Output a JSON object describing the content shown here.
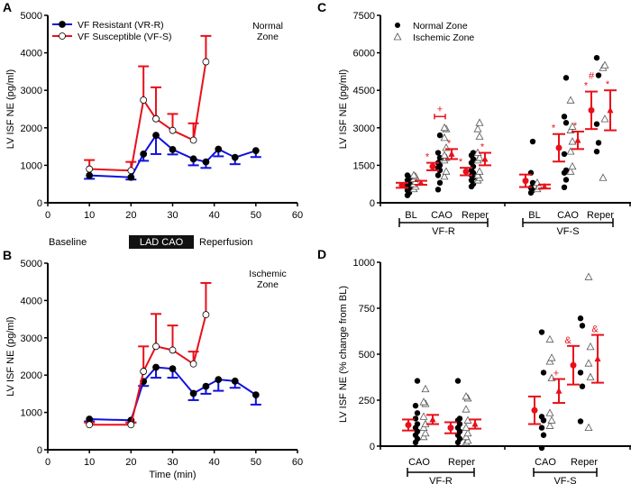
{
  "colors": {
    "resistant": "#1010e0",
    "susceptible": "#e8101a",
    "mean": "#e8101a",
    "phase_bar": "#111111"
  },
  "chart_data": [
    {
      "panel": "A",
      "type": "line",
      "xlabel": "",
      "ylabel": "LV ISF NE (pg/ml)",
      "xlim": [
        0,
        60
      ],
      "ylim": [
        0,
        5000
      ],
      "xticks": [
        "0",
        "10",
        "20",
        "30",
        "40",
        "50",
        "60"
      ],
      "yticks": [
        "0",
        "1000",
        "2000",
        "3000",
        "4000",
        "5000"
      ],
      "zone_label": [
        "Normal",
        "Zone"
      ],
      "legend": {
        "placement": "top-left",
        "entries": [
          "VF Resistant (VR-R)",
          "VF Susceptible (VF-S)"
        ]
      },
      "series": [
        {
          "name": "VF Resistant (VR-R)",
          "marker": "filled-circle",
          "color": "#1010e0",
          "error_dir": "down",
          "x": [
            10,
            20,
            23,
            26,
            30,
            35,
            38,
            41,
            45,
            50
          ],
          "y": [
            730,
            680,
            1300,
            1800,
            1420,
            1170,
            1090,
            1430,
            1210,
            1390
          ],
          "err": [
            90,
            60,
            180,
            500,
            130,
            170,
            160,
            190,
            180,
            170
          ]
        },
        {
          "name": "VF Susceptible (VF-S)",
          "marker": "open-circle",
          "color": "#e8101a",
          "error_dir": "up",
          "x": [
            10,
            20,
            23,
            26,
            30,
            35,
            38
          ],
          "y": [
            900,
            860,
            2740,
            2240,
            1930,
            1670,
            3760
          ],
          "err": [
            240,
            230,
            900,
            840,
            440,
            450,
            690
          ]
        }
      ]
    },
    {
      "panel": "B",
      "type": "line",
      "xlabel": "Time (min)",
      "ylabel": "LV ISF NE (pg/ml)",
      "xlim": [
        0,
        60
      ],
      "ylim": [
        0,
        5000
      ],
      "xticks": [
        "0",
        "10",
        "20",
        "30",
        "40",
        "50",
        "60"
      ],
      "yticks": [
        "0",
        "1000",
        "2000",
        "3000",
        "4000",
        "5000"
      ],
      "zone_label": [
        "Ischemic",
        "Zone"
      ],
      "series": [
        {
          "name": "VF Resistant (VR-R)",
          "marker": "filled-circle",
          "color": "#1010e0",
          "error_dir": "down",
          "x": [
            10,
            20,
            23,
            26,
            30,
            35,
            38,
            41,
            45,
            50
          ],
          "y": [
            820,
            790,
            1830,
            2210,
            2170,
            1510,
            1700,
            1880,
            1840,
            1470
          ],
          "err": [
            60,
            60,
            120,
            280,
            240,
            180,
            200,
            300,
            180,
            260
          ]
        },
        {
          "name": "VF Susceptible (VF-S)",
          "marker": "open-circle",
          "color": "#e8101a",
          "error_dir": "up",
          "x": [
            10,
            20,
            23,
            26,
            30,
            35,
            38
          ],
          "y": [
            670,
            670,
            2100,
            2770,
            2670,
            2300,
            3620
          ],
          "err": [
            60,
            60,
            670,
            870,
            660,
            330,
            850
          ]
        }
      ]
    },
    {
      "panel": "C",
      "type": "scatter",
      "ylabel": "LV ISF NE (pg/ml)",
      "ylim": [
        0,
        7500
      ],
      "yticks": [
        "0",
        "1500",
        "3000",
        "4500",
        "6000",
        "7500"
      ],
      "legend": {
        "placement": "top-left",
        "entries": [
          "Normal Zone",
          "Ischemic Zone"
        ]
      },
      "groups": [
        {
          "label": "VF-R",
          "categories": [
            {
              "label": "BL",
              "normal": {
                "points": [
                  300,
                  400,
                  500,
                  600,
                  700,
                  800,
                  900,
                  1000,
                  1100
                ],
                "mean": 700,
                "err": 100,
                "mark": ""
              },
              "ischemic": {
                "points": [
                  550,
                  650,
                  750,
                  850,
                  950,
                  1050,
                  1100
                ],
                "mean": 800,
                "err": 80,
                "mark": ""
              }
            },
            {
              "label": "CAO",
              "normal": {
                "points": [
                  530,
                  800,
                  1100,
                  1300,
                  1400,
                  1500,
                  1600,
                  1800,
                  2000,
                  2700
                ],
                "mean": 1450,
                "err": 150,
                "mark": "*"
              },
              "ischemic": {
                "points": [
                  1050,
                  1250,
                  1700,
                  1800,
                  1900,
                  2200,
                  2600,
                  2950,
                  3000
                ],
                "mean": 1950,
                "err": 200,
                "mark": "*"
              },
              "bracket_mark": "+"
            },
            {
              "label": "Reper",
              "normal": {
                "points": [
                  650,
                  750,
                  900,
                  1000,
                  1100,
                  1200,
                  1300,
                  1450,
                  1600,
                  1750,
                  1900,
                  2000
                ],
                "mean": 1250,
                "err": 150,
                "mark": "*"
              },
              "ischemic": {
                "points": [
                  900,
                  1000,
                  1100,
                  1250,
                  1700,
                  1800,
                  2000,
                  2650,
                  2950,
                  3200
                ],
                "mean": 1750,
                "err": 250,
                "mark": "*"
              }
            }
          ]
        },
        {
          "label": "VF-S",
          "categories": [
            {
              "label": "BL",
              "normal": {
                "points": [
                  400,
                  500,
                  600,
                  800,
                  1200,
                  2450
                ],
                "mean": 880,
                "err": 250,
                "mark": ""
              },
              "ischemic": {
                "points": [
                  550,
                  650,
                  800
                ],
                "mean": 650,
                "err": 80,
                "mark": ""
              }
            },
            {
              "label": "CAO",
              "normal": {
                "points": [
                  620,
                  920,
                  1200,
                  1300,
                  1950,
                  3200,
                  3450,
                  5000
                ],
                "mean": 2200,
                "err": 550,
                "mark": "*"
              },
              "ischemic": {
                "points": [
                  1250,
                  1450,
                  2050,
                  2450,
                  2900,
                  3050,
                  4100
                ],
                "mean": 2500,
                "err": 350,
                "mark": "*"
              }
            },
            {
              "label": "Reper",
              "normal": {
                "points": [
                  2050,
                  2400,
                  3150,
                  5100,
                  5800
                ],
                "mean": 3700,
                "err": 750,
                "mark": "*",
                "mark2": "#"
              },
              "ischemic": {
                "points": [
                  1000,
                  3350,
                  5400,
                  5500
                ],
                "mean": 3700,
                "err": 800,
                "mark": "*"
              }
            }
          ]
        }
      ]
    },
    {
      "panel": "D",
      "type": "scatter",
      "ylabel": "LV ISF NE (% change from BL)",
      "ylim": [
        0,
        1000
      ],
      "yticks": [
        "0",
        "250",
        "500",
        "750",
        "1000"
      ],
      "groups": [
        {
          "label": "VF-R",
          "categories": [
            {
              "label": "CAO",
              "normal": {
                "points": [
                  20,
                  40,
                  60,
                  80,
                  100,
                  120,
                  150,
                  180,
                  220,
                  355
                ],
                "mean": 115,
                "err": 30,
                "mark": ""
              },
              "ischemic": {
                "points": [
                  50,
                  70,
                  100,
                  120,
                  160,
                  230,
                  240,
                  310
                ],
                "mean": 145,
                "err": 25,
                "mark": ""
              }
            },
            {
              "label": "Reper",
              "normal": {
                "points": [
                  20,
                  40,
                  60,
                  80,
                  100,
                  120,
                  140,
                  150,
                  355
                ],
                "mean": 100,
                "err": 30,
                "mark": ""
              },
              "ischemic": {
                "points": [
                  20,
                  30,
                  50,
                  70,
                  100,
                  140,
                  200,
                  260,
                  270
                ],
                "mean": 120,
                "err": 25,
                "mark": ""
              }
            }
          ]
        },
        {
          "label": "VF-S",
          "categories": [
            {
              "label": "CAO",
              "normal": {
                "points": [
                  -10,
                  60,
                  100,
                  140,
                  160,
                  400,
                  620
                ],
                "mean": 195,
                "err": 75,
                "mark": ""
              },
              "ischemic": {
                "points": [
                  110,
                  140,
                  180,
                  370,
                  460,
                  480,
                  580
                ],
                "mean": 300,
                "err": 65,
                "mark": "+"
              }
            },
            {
              "label": "Reper",
              "normal": {
                "points": [
                  135,
                  325,
                  400,
                  655,
                  695
                ],
                "mean": 440,
                "err": 105,
                "mark": "&"
              },
              "ischemic": {
                "points": [
                  100,
                  375,
                  450,
                  540,
                  920
                ],
                "mean": 475,
                "err": 130,
                "mark": "&"
              }
            }
          ]
        }
      ]
    }
  ],
  "phases": {
    "baseline": "Baseline",
    "occlusion": "LAD CAO",
    "reperfusion": "Reperfusion"
  }
}
